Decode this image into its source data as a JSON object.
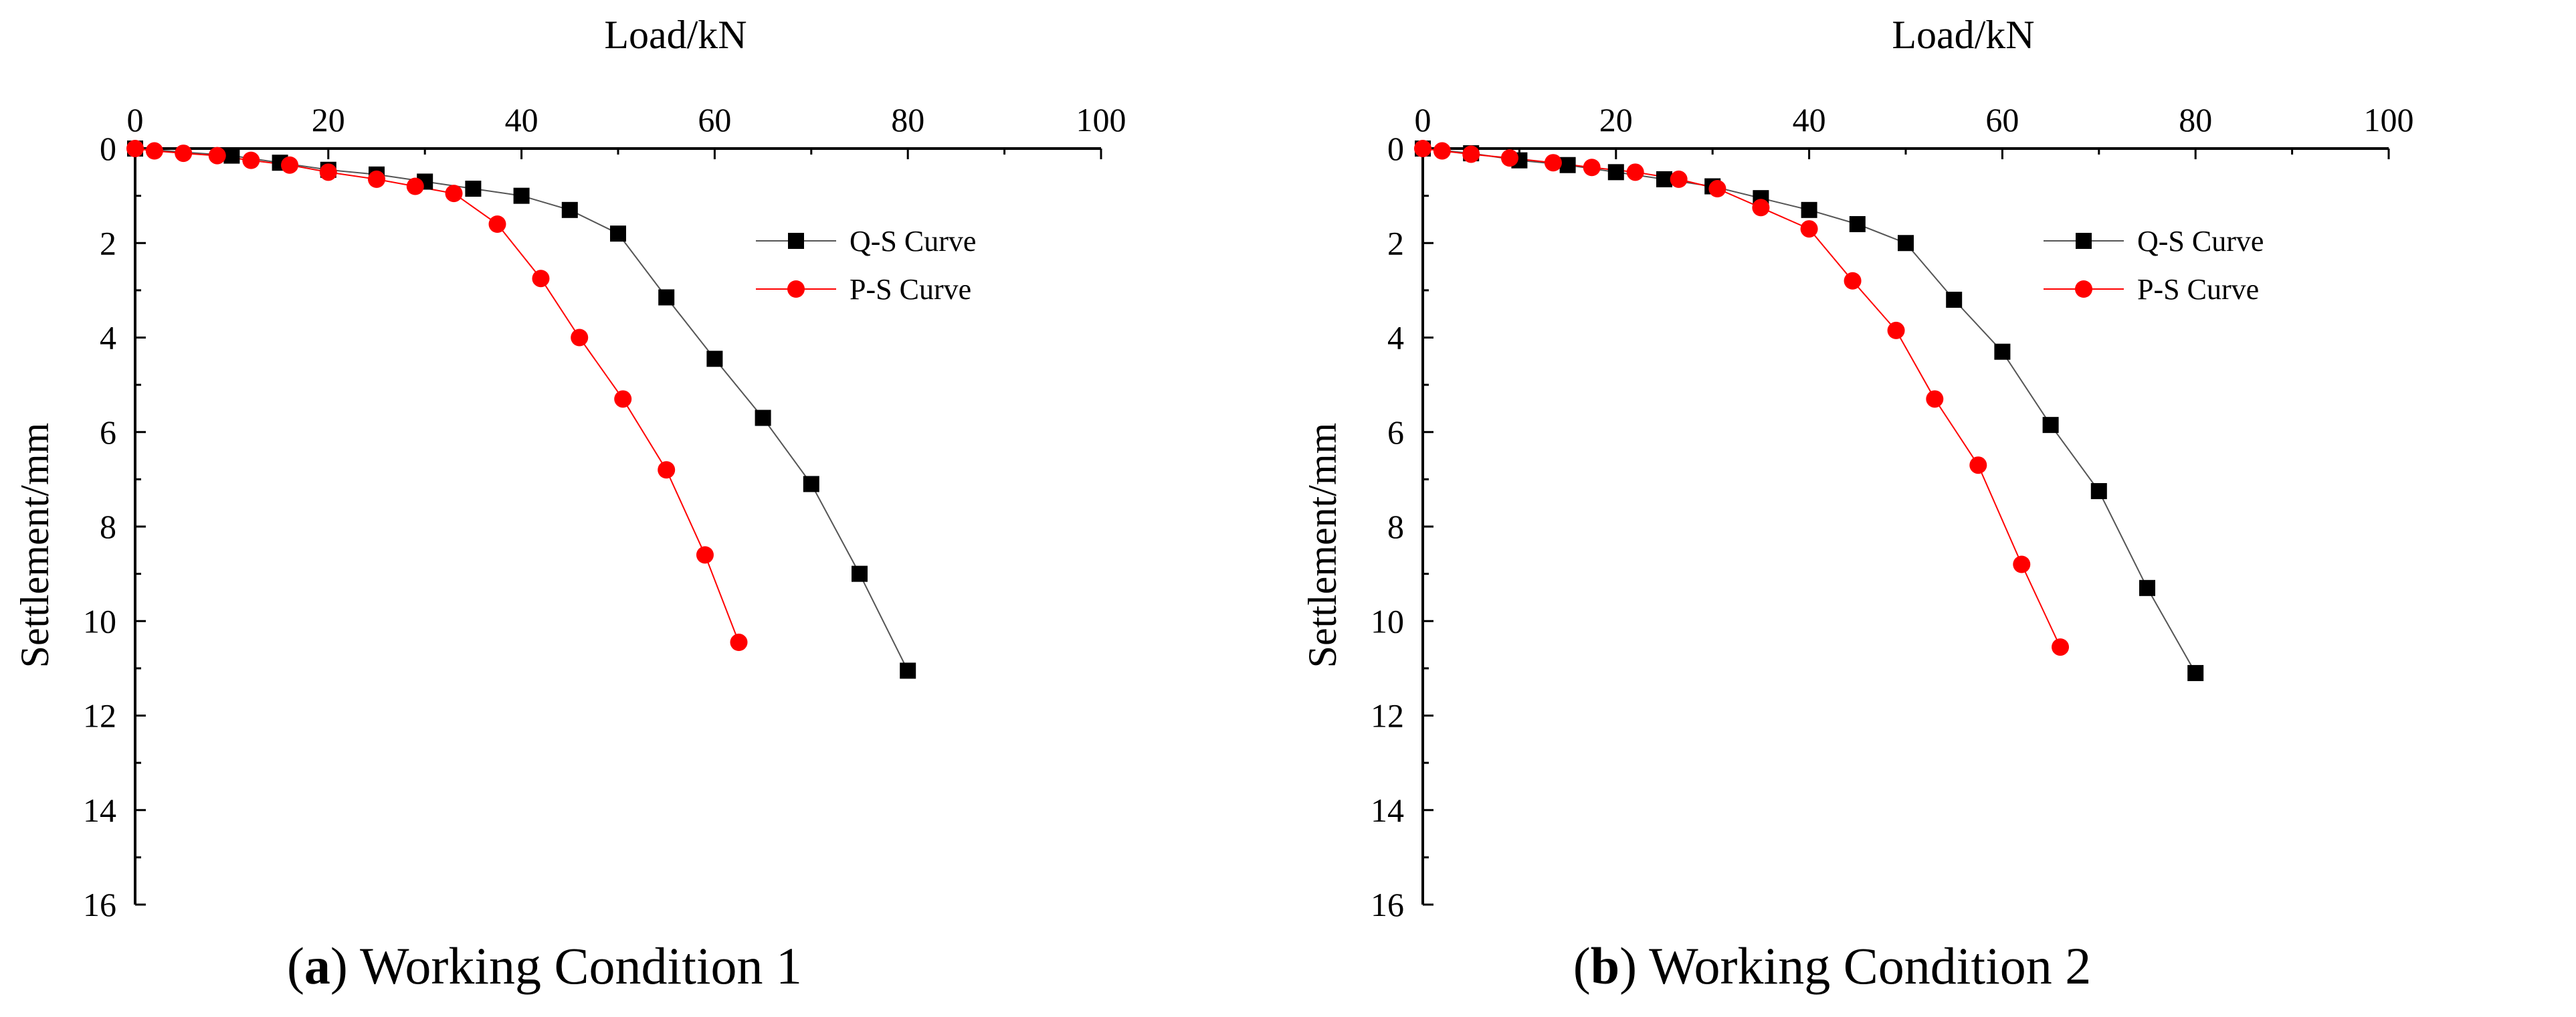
{
  "chart_data": [
    {
      "type": "line",
      "caption": {
        "open": "(",
        "letter": "a",
        "close": ")",
        "text": " Working Condition 1"
      },
      "xlabel": "Load/kN",
      "ylabel": "Settlement/mm",
      "xlim": [
        0,
        100
      ],
      "ylim": [
        0,
        16
      ],
      "y_inverted": true,
      "x_axis_position": "top",
      "xticks": [
        0,
        20,
        40,
        60,
        80,
        100
      ],
      "yticks": [
        0,
        2,
        4,
        6,
        8,
        10,
        12,
        14,
        16
      ],
      "legend_position": "top-right",
      "series": [
        {
          "name": "Q-S Curve",
          "color": "#000000",
          "marker": "square",
          "x": [
            0,
            10,
            15,
            20,
            25,
            30,
            35,
            40,
            45,
            50,
            55,
            60,
            65,
            70,
            75,
            80
          ],
          "y": [
            0,
            0.15,
            0.3,
            0.45,
            0.55,
            0.7,
            0.85,
            1.0,
            1.3,
            1.8,
            3.15,
            4.45,
            5.7,
            7.1,
            9.0,
            11.05
          ]
        },
        {
          "name": "P-S Curve",
          "color": "#ff0000",
          "marker": "circle",
          "x": [
            0,
            2,
            5,
            8.5,
            12,
            16,
            20,
            25,
            29,
            33,
            37.5,
            42,
            46,
            50.5,
            55,
            59,
            62.5
          ],
          "y": [
            0,
            0.05,
            0.1,
            0.15,
            0.25,
            0.35,
            0.5,
            0.65,
            0.8,
            0.95,
            1.6,
            2.75,
            4.0,
            5.3,
            6.8,
            8.6,
            10.45
          ]
        }
      ]
    },
    {
      "type": "line",
      "caption": {
        "open": "(",
        "letter": "b",
        "close": ")",
        "text": " Working Condition 2"
      },
      "xlabel": "Load/kN",
      "ylabel": "Settlement/mm",
      "xlim": [
        0,
        100
      ],
      "ylim": [
        0,
        16
      ],
      "y_inverted": true,
      "x_axis_position": "top",
      "xticks": [
        0,
        20,
        40,
        60,
        80,
        100
      ],
      "yticks": [
        0,
        2,
        4,
        6,
        8,
        10,
        12,
        14,
        16
      ],
      "legend_position": "top-right",
      "series": [
        {
          "name": "Q-S Curve",
          "color": "#000000",
          "marker": "square",
          "x": [
            0,
            5,
            10,
            15,
            20,
            25,
            30,
            35,
            40,
            45,
            50,
            55,
            60,
            65,
            70,
            75,
            80
          ],
          "y": [
            0,
            0.1,
            0.25,
            0.35,
            0.5,
            0.65,
            0.8,
            1.05,
            1.3,
            1.6,
            2.0,
            3.2,
            4.3,
            5.85,
            7.25,
            9.3,
            11.1
          ]
        },
        {
          "name": "P-S Curve",
          "color": "#ff0000",
          "marker": "circle",
          "x": [
            0,
            2,
            5,
            9,
            13.5,
            17.5,
            22,
            26.5,
            30.5,
            35,
            40,
            44.5,
            49,
            53,
            57.5,
            62,
            66
          ],
          "y": [
            0,
            0.05,
            0.12,
            0.2,
            0.3,
            0.4,
            0.5,
            0.65,
            0.85,
            1.25,
            1.7,
            2.8,
            3.85,
            5.3,
            6.7,
            8.8,
            10.55
          ]
        }
      ]
    }
  ]
}
